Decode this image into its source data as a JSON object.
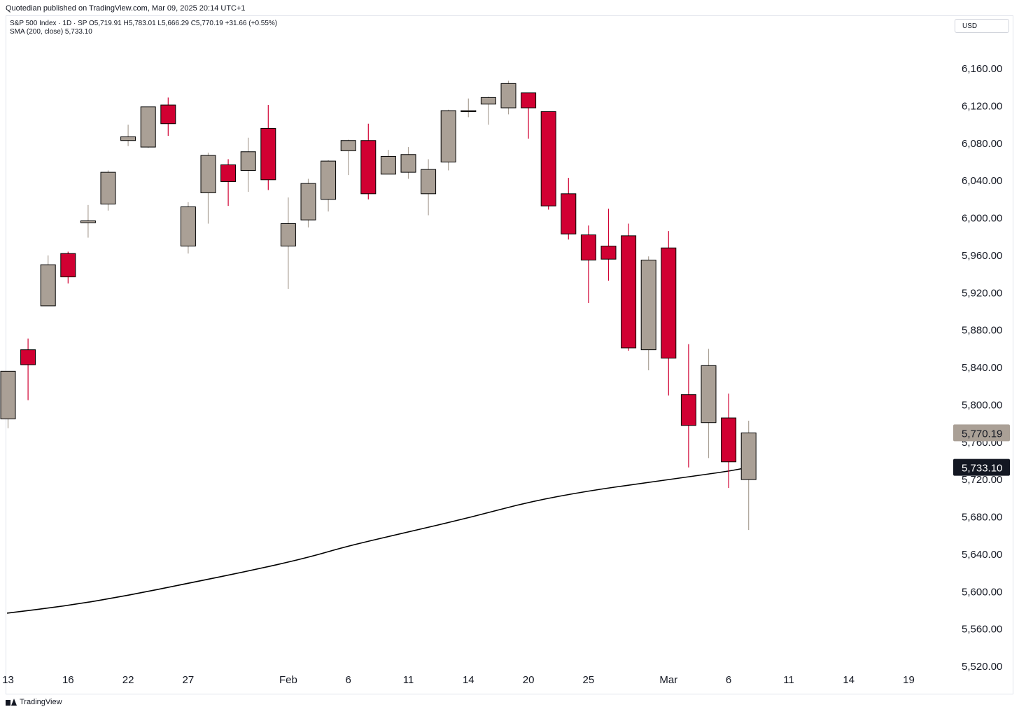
{
  "header": {
    "published": "Quotedian published on TradingView.com, Mar 09, 2025 20:14 UTC+1",
    "legend_line1": "S&P 500 Index · 1D · SP  O5,719.91  H5,783.01  L5,666.29  C5,770.19  +31.66 (+0.55%)",
    "legend_line2": "SMA (200, close)  5,733.10",
    "currency": "USD"
  },
  "footer": {
    "brand": "TradingView"
  },
  "colors": {
    "up": "#aaa096",
    "down": "#d10032",
    "sma": "#000000",
    "wick_up": "#aaa096",
    "wick_down": "#d10032"
  },
  "chart_data": {
    "type": "candlestick",
    "symbol": "S&P 500 Index",
    "interval": "1D",
    "exchange": "SP",
    "ylim": [
      5520,
      6200
    ],
    "yticks": [
      "6,160.00",
      "6,120.00",
      "6,080.00",
      "6,040.00",
      "6,000.00",
      "5,960.00",
      "5,920.00",
      "5,880.00",
      "5,840.00",
      "5,800.00",
      "5,760.00",
      "5,720.00",
      "5,680.00",
      "5,640.00",
      "5,600.00",
      "5,560.00",
      "5,520.00"
    ],
    "ytick_values": [
      6160,
      6120,
      6080,
      6040,
      6000,
      5960,
      5920,
      5880,
      5840,
      5800,
      5760,
      5720,
      5680,
      5640,
      5600,
      5560,
      5520
    ],
    "xticks": [
      {
        "label": "13",
        "date": "2025-01-13",
        "slot": 0
      },
      {
        "label": "16",
        "date": "2025-01-16",
        "slot": 3
      },
      {
        "label": "22",
        "date": "2025-01-22",
        "slot": 6
      },
      {
        "label": "27",
        "date": "2025-01-27",
        "slot": 9
      },
      {
        "label": "Feb",
        "date": "2025-02-03",
        "slot": 14
      },
      {
        "label": "6",
        "date": "2025-02-06",
        "slot": 17
      },
      {
        "label": "11",
        "date": "2025-02-11",
        "slot": 20
      },
      {
        "label": "14",
        "date": "2025-02-14",
        "slot": 23
      },
      {
        "label": "20",
        "date": "2025-02-20",
        "slot": 26
      },
      {
        "label": "25",
        "date": "2025-02-25",
        "slot": 29
      },
      {
        "label": "Mar",
        "date": "2025-03-03",
        "slot": 33
      },
      {
        "label": "6",
        "date": "2025-03-06",
        "slot": 36
      },
      {
        "label": "11",
        "date": "2025-03-11",
        "slot": 39
      },
      {
        "label": "14",
        "date": "2025-03-14",
        "slot": 42
      },
      {
        "label": "19",
        "date": "2025-03-19",
        "slot": 45
      }
    ],
    "candles": [
      {
        "date": "2025-01-13",
        "o": 5785,
        "h": 5836,
        "l": 5775,
        "c": 5836
      },
      {
        "date": "2025-01-14",
        "o": 5859,
        "h": 5871,
        "l": 5805,
        "c": 5843
      },
      {
        "date": "2025-01-15",
        "o": 5906,
        "h": 5960,
        "l": 5906,
        "c": 5950
      },
      {
        "date": "2025-01-16",
        "o": 5962,
        "h": 5964,
        "l": 5930,
        "c": 5937
      },
      {
        "date": "2025-01-17",
        "o": 5995,
        "h": 6014,
        "l": 5979,
        "c": 5997
      },
      {
        "date": "2025-01-21",
        "o": 6015,
        "h": 6051,
        "l": 6008,
        "c": 6049
      },
      {
        "date": "2025-01-22",
        "o": 6083,
        "h": 6100,
        "l": 6077,
        "c": 6087
      },
      {
        "date": "2025-01-23",
        "o": 6076,
        "h": 6119,
        "l": 6075,
        "c": 6119
      },
      {
        "date": "2025-01-24",
        "o": 6121,
        "h": 6129,
        "l": 6088,
        "c": 6101
      },
      {
        "date": "2025-01-27",
        "o": 5970,
        "h": 6017,
        "l": 5962,
        "c": 6012
      },
      {
        "date": "2025-01-28",
        "o": 6027,
        "h": 6070,
        "l": 5994,
        "c": 6067
      },
      {
        "date": "2025-01-29",
        "o": 6057,
        "h": 6063,
        "l": 6013,
        "c": 6039
      },
      {
        "date": "2025-01-30",
        "o": 6051,
        "h": 6086,
        "l": 6028,
        "c": 6071
      },
      {
        "date": "2025-01-31",
        "o": 6096,
        "h": 6121,
        "l": 6030,
        "c": 6041
      },
      {
        "date": "2025-02-03",
        "o": 5970,
        "h": 6022,
        "l": 5924,
        "c": 5994
      },
      {
        "date": "2025-02-04",
        "o": 5998,
        "h": 6042,
        "l": 5990,
        "c": 6037
      },
      {
        "date": "2025-02-05",
        "o": 6020,
        "h": 6062,
        "l": 6007,
        "c": 6061
      },
      {
        "date": "2025-02-06",
        "o": 6072,
        "h": 6084,
        "l": 6046,
        "c": 6083
      },
      {
        "date": "2025-02-07",
        "o": 6083,
        "h": 6101,
        "l": 6020,
        "c": 6026
      },
      {
        "date": "2025-02-10",
        "o": 6047,
        "h": 6073,
        "l": 6047,
        "c": 6066
      },
      {
        "date": "2025-02-11",
        "o": 6049,
        "h": 6076,
        "l": 6042,
        "c": 6068
      },
      {
        "date": "2025-02-12",
        "o": 6026,
        "h": 6063,
        "l": 6003,
        "c": 6052
      },
      {
        "date": "2025-02-13",
        "o": 6060,
        "h": 6116,
        "l": 6051,
        "c": 6115
      },
      {
        "date": "2025-02-14",
        "o": 6115,
        "h": 6128,
        "l": 6108,
        "c": 6115
      },
      {
        "date": "2025-02-18",
        "o": 6122,
        "h": 6130,
        "l": 6100,
        "c": 6129
      },
      {
        "date": "2025-02-19",
        "o": 6118,
        "h": 6147,
        "l": 6111,
        "c": 6144
      },
      {
        "date": "2025-02-20",
        "o": 6134,
        "h": 6134,
        "l": 6085,
        "c": 6118
      },
      {
        "date": "2025-02-21",
        "o": 6114,
        "h": 6114,
        "l": 6009,
        "c": 6013
      },
      {
        "date": "2025-02-24",
        "o": 6026,
        "h": 6043,
        "l": 5977,
        "c": 5983
      },
      {
        "date": "2025-02-25",
        "o": 5982,
        "h": 5992,
        "l": 5909,
        "c": 5955
      },
      {
        "date": "2025-02-26",
        "o": 5970,
        "h": 6010,
        "l": 5933,
        "c": 5956
      },
      {
        "date": "2025-02-27",
        "o": 5981,
        "h": 5994,
        "l": 5858,
        "c": 5861
      },
      {
        "date": "2025-02-28",
        "o": 5859,
        "h": 5959,
        "l": 5837,
        "c": 5955
      },
      {
        "date": "2025-03-03",
        "o": 5968,
        "h": 5986,
        "l": 5810,
        "c": 5850
      },
      {
        "date": "2025-03-04",
        "o": 5811,
        "h": 5865,
        "l": 5733,
        "c": 5778
      },
      {
        "date": "2025-03-05",
        "o": 5781,
        "h": 5860,
        "l": 5743,
        "c": 5842
      },
      {
        "date": "2025-03-06",
        "o": 5786,
        "h": 5812,
        "l": 5711,
        "c": 5739
      },
      {
        "date": "2025-03-07",
        "o": 5720,
        "h": 5783,
        "l": 5666,
        "c": 5770
      }
    ],
    "sma": {
      "name": "SMA (200, close)",
      "last": 5733.1,
      "points": [
        {
          "slot": -0.05,
          "v": 5577
        },
        {
          "slot": 3,
          "v": 5585
        },
        {
          "slot": 6,
          "v": 5596
        },
        {
          "slot": 9,
          "v": 5609
        },
        {
          "slot": 12,
          "v": 5622
        },
        {
          "slot": 14.9,
          "v": 5636
        },
        {
          "slot": 17,
          "v": 5649
        },
        {
          "slot": 20,
          "v": 5664
        },
        {
          "slot": 23,
          "v": 5679
        },
        {
          "slot": 26,
          "v": 5696
        },
        {
          "slot": 29,
          "v": 5708
        },
        {
          "slot": 32,
          "v": 5717
        },
        {
          "slot": 34,
          "v": 5723
        },
        {
          "slot": 36,
          "v": 5729
        },
        {
          "slot": 37,
          "v": 5733.1
        }
      ]
    },
    "price_tags": {
      "close": "5,770.19",
      "sma": "5,733.10"
    }
  }
}
